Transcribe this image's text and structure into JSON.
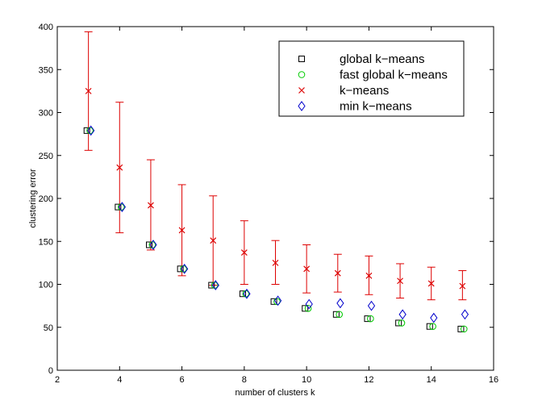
{
  "chart_data": {
    "type": "scatter",
    "title": "",
    "xlabel": "number of clusters k",
    "ylabel": "clustering error",
    "xlim": [
      2,
      16
    ],
    "ylim": [
      0,
      400
    ],
    "xticks": [
      2,
      4,
      6,
      8,
      10,
      12,
      14,
      16
    ],
    "yticks": [
      0,
      50,
      100,
      150,
      200,
      250,
      300,
      350,
      400
    ],
    "grid": false,
    "legend_position": "top-right",
    "series": [
      {
        "name": "global k−means",
        "marker": "square",
        "color": "#000000",
        "x": [
          3,
          4,
          5,
          6,
          7,
          8,
          9,
          10,
          11,
          12,
          13,
          14,
          15
        ],
        "y": [
          279,
          190,
          146,
          118,
          99,
          89,
          80,
          72,
          65,
          60,
          55,
          51,
          48
        ]
      },
      {
        "name": "fast global k−means",
        "marker": "circle",
        "color": "#00cc00",
        "x": [
          3,
          4,
          5,
          6,
          7,
          8,
          9,
          10,
          11,
          12,
          13,
          14,
          15
        ],
        "y": [
          279,
          190,
          146,
          118,
          99,
          89,
          80,
          72,
          65,
          60,
          55,
          51,
          48
        ]
      },
      {
        "name": "k−means",
        "marker": "x",
        "color": "#dd0000",
        "x": [
          3,
          4,
          5,
          6,
          7,
          8,
          9,
          10,
          11,
          12,
          13,
          14,
          15
        ],
        "y": [
          325,
          236,
          192,
          163,
          151,
          137,
          125,
          118,
          113,
          110,
          104,
          101,
          98
        ],
        "err_low": [
          256,
          160,
          140,
          110,
          99,
          100,
          100,
          90,
          91,
          88,
          84,
          82,
          82
        ],
        "err_high": [
          394,
          312,
          245,
          216,
          203,
          174,
          151,
          146,
          135,
          133,
          124,
          120,
          116
        ]
      },
      {
        "name": "min k−means",
        "marker": "diamond",
        "color": "#0000cc",
        "x": [
          3,
          4,
          5,
          6,
          7,
          8,
          9,
          10,
          11,
          12,
          13,
          14,
          15
        ],
        "y": [
          279,
          190,
          146,
          118,
          99,
          89,
          81,
          77,
          78,
          75,
          65,
          61,
          65
        ]
      }
    ]
  }
}
